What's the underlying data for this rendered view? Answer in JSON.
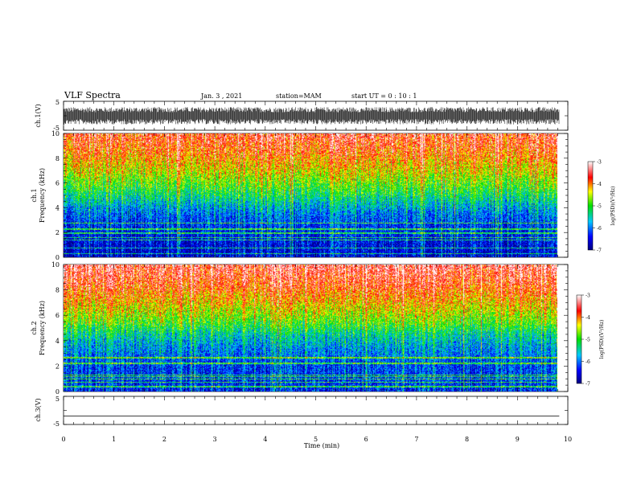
{
  "header": {
    "title": "VLF Spectra",
    "date": "Jan. 3 , 2021",
    "station": "station=MAM",
    "start": "start UT = 0 : 10 : 1"
  },
  "chart_data": [
    {
      "type": "line",
      "panel": "ch1-waveform",
      "ylabel": "ch.1(V)",
      "ylim": [
        -5,
        5
      ],
      "yticks": [
        "5",
        "-5"
      ],
      "xlim": [
        0,
        10
      ],
      "description_values": {
        "x_end_min": 9.83,
        "envelope_v": [
          -3,
          3
        ]
      }
    },
    {
      "type": "heatmap",
      "panel": "ch1-spectrogram",
      "ylabel": "ch.1\nFrequency (kHz)",
      "ylabel_lines": [
        "ch.1",
        "Frequency (kHz)"
      ],
      "ylim": [
        0,
        10
      ],
      "yticks": [
        "0",
        "2",
        "4",
        "6",
        "8",
        "10"
      ],
      "xlim": [
        0,
        10
      ],
      "x_end": 9.83,
      "colorbar": {
        "label": "log(PSD)(V²/Hz)",
        "range": [
          -7,
          -3
        ],
        "ticks": [
          "-3",
          "-4",
          "-5",
          "-6",
          "-7"
        ]
      },
      "power_profile_log_psd": [
        {
          "freq_khz": 0.5,
          "value": -6.6
        },
        {
          "freq_khz": 2,
          "value": -6.4
        },
        {
          "freq_khz": 3.5,
          "value": -6.0
        },
        {
          "freq_khz": 4.5,
          "value": -5.5
        },
        {
          "freq_khz": 5.5,
          "value": -5.0
        },
        {
          "freq_khz": 7,
          "value": -4.4
        },
        {
          "freq_khz": 8.5,
          "value": -3.9
        },
        {
          "freq_khz": 10,
          "value": -3.6
        }
      ]
    },
    {
      "type": "heatmap",
      "panel": "ch2-spectrogram",
      "ylabel": "ch.2\nFrequency (kHz)",
      "ylabel_lines": [
        "ch.2",
        "Frequency (kHz)"
      ],
      "ylim": [
        0,
        10
      ],
      "yticks": [
        "0",
        "2",
        "4",
        "6",
        "8",
        "10"
      ],
      "xlim": [
        0,
        10
      ],
      "x_end": 9.83,
      "colorbar": {
        "label": "log(PSD)(V²/Hz)",
        "range": [
          -7,
          -3
        ],
        "ticks": [
          "-3",
          "-4",
          "-5",
          "-6",
          "-7"
        ]
      },
      "power_profile_log_psd": [
        {
          "freq_khz": 0.5,
          "value": -6.3
        },
        {
          "freq_khz": 2,
          "value": -6.2
        },
        {
          "freq_khz": 3.5,
          "value": -5.8
        },
        {
          "freq_khz": 4.5,
          "value": -5.4
        },
        {
          "freq_khz": 5.5,
          "value": -4.8
        },
        {
          "freq_khz": 7,
          "value": -4.2
        },
        {
          "freq_khz": 8.5,
          "value": -3.7
        },
        {
          "freq_khz": 10,
          "value": -3.4
        }
      ]
    },
    {
      "type": "line",
      "panel": "ch3-waveform",
      "ylabel": "ch.3(V)",
      "ylim": [
        -5,
        5
      ],
      "yticks": [
        "5",
        "-5"
      ],
      "xlim": [
        0,
        10
      ],
      "x": [
        0,
        9.83
      ],
      "values": [
        -2,
        -2
      ]
    }
  ],
  "xaxis": {
    "label": "Time (min)",
    "ticks": [
      "0",
      "1",
      "2",
      "3",
      "4",
      "5",
      "6",
      "7",
      "8",
      "9",
      "10"
    ]
  }
}
